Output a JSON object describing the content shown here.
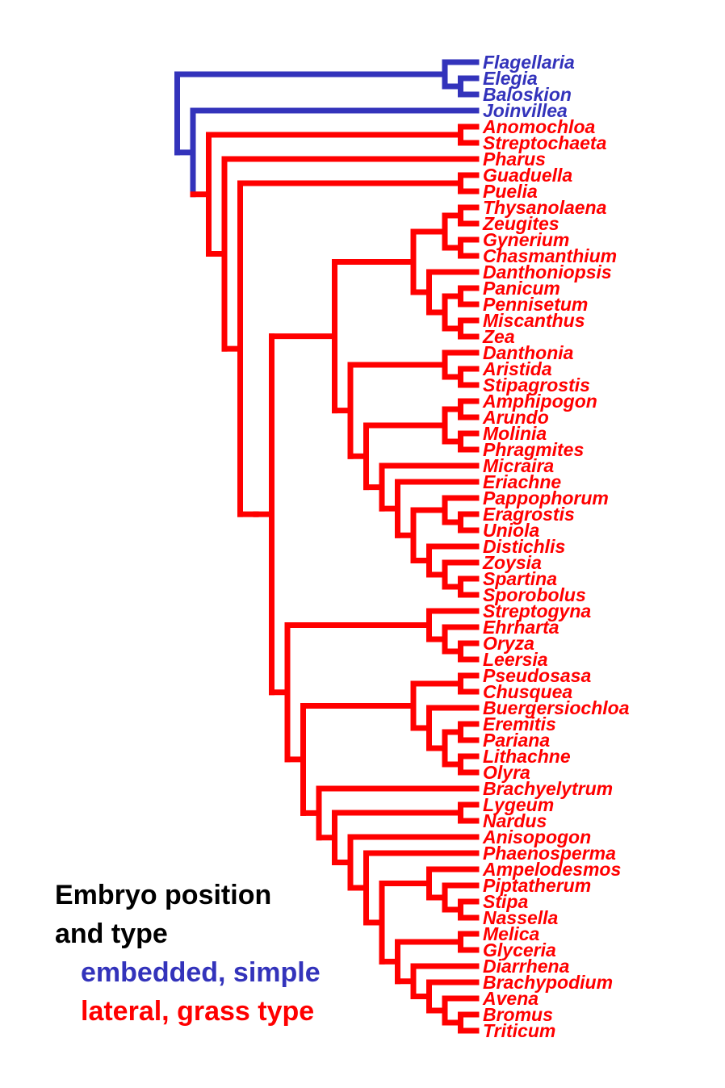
{
  "colors": {
    "embedded": "#3333bb",
    "lateral": "#ff0000",
    "title": "#000000"
  },
  "tree": {
    "newick": "((Flagellaria,(Elegia,Baloskion)),(Joinvillea,((Anomochloa,Streptochaeta),(Pharus,((Guaduella,Puelia),((((((Thysanolaena,Zeugites),(Gynerium,Chasmanthium)),(Danthoniopsis,((Panicum,Pennisetum),(Miscanthus,Zea)))),((Danthonia,(Aristida,Stipagrostis)),(((Amphipogon,Arundo),(Molinia,Phragmites)),(Micraira,(Eriachne,((Pappophorum,(Eragrostis,Uniola)),(Distichlis,(Zoysia,(Spartina,Sporobolus))))))))),((Streptogyna,(Ehrharta,(Oryza,Leersia))),(((Pseudosasa,Chusquea),(Buergersiochloa,((Eremitis,Pariana),(Lithachne,Olyra)))),(Brachyelytrum,((Lygeum,Nardus),(Anisopogon,(Phaenosperma,((Ampelodesmos,(Piptatherum,(Stipa,Nassella))),((Melica,Glyceria),(Diarrhena,(Brachypodium,(Avena,(Bromus,Triticum)))))))))))))))));",
    "taxa": [
      {
        "name": "Flagellaria",
        "type": "embedded"
      },
      {
        "name": "Elegia",
        "type": "embedded"
      },
      {
        "name": "Baloskion",
        "type": "embedded"
      },
      {
        "name": "Joinvillea",
        "type": "embedded"
      },
      {
        "name": "Anomochloa",
        "type": "lateral"
      },
      {
        "name": "Streptochaeta",
        "type": "lateral"
      },
      {
        "name": "Pharus",
        "type": "lateral"
      },
      {
        "name": "Guaduella",
        "type": "lateral"
      },
      {
        "name": "Puelia",
        "type": "lateral"
      },
      {
        "name": "Thysanolaena",
        "type": "lateral"
      },
      {
        "name": "Zeugites",
        "type": "lateral"
      },
      {
        "name": "Gynerium",
        "type": "lateral"
      },
      {
        "name": "Chasmanthium",
        "type": "lateral"
      },
      {
        "name": "Danthoniopsis",
        "type": "lateral"
      },
      {
        "name": "Panicum",
        "type": "lateral"
      },
      {
        "name": "Pennisetum",
        "type": "lateral"
      },
      {
        "name": "Miscanthus",
        "type": "lateral"
      },
      {
        "name": "Zea",
        "type": "lateral"
      },
      {
        "name": "Danthonia",
        "type": "lateral"
      },
      {
        "name": "Aristida",
        "type": "lateral"
      },
      {
        "name": "Stipagrostis",
        "type": "lateral"
      },
      {
        "name": "Amphipogon",
        "type": "lateral"
      },
      {
        "name": "Arundo",
        "type": "lateral"
      },
      {
        "name": "Molinia",
        "type": "lateral"
      },
      {
        "name": "Phragmites",
        "type": "lateral"
      },
      {
        "name": "Micraira",
        "type": "lateral"
      },
      {
        "name": "Eriachne",
        "type": "lateral"
      },
      {
        "name": "Pappophorum",
        "type": "lateral"
      },
      {
        "name": "Eragrostis",
        "type": "lateral"
      },
      {
        "name": "Uniola",
        "type": "lateral"
      },
      {
        "name": "Distichlis",
        "type": "lateral"
      },
      {
        "name": "Zoysia",
        "type": "lateral"
      },
      {
        "name": "Spartina",
        "type": "lateral"
      },
      {
        "name": "Sporobolus",
        "type": "lateral"
      },
      {
        "name": "Streptogyna",
        "type": "lateral"
      },
      {
        "name": "Ehrharta",
        "type": "lateral"
      },
      {
        "name": "Oryza",
        "type": "lateral"
      },
      {
        "name": "Leersia",
        "type": "lateral"
      },
      {
        "name": "Pseudosasa",
        "type": "lateral"
      },
      {
        "name": "Chusquea",
        "type": "lateral"
      },
      {
        "name": "Buergersiochloa",
        "type": "lateral"
      },
      {
        "name": "Eremitis",
        "type": "lateral"
      },
      {
        "name": "Pariana",
        "type": "lateral"
      },
      {
        "name": "Lithachne",
        "type": "lateral"
      },
      {
        "name": "Olyra",
        "type": "lateral"
      },
      {
        "name": "Brachyelytrum",
        "type": "lateral"
      },
      {
        "name": "Lygeum",
        "type": "lateral"
      },
      {
        "name": "Nardus",
        "type": "lateral"
      },
      {
        "name": "Anisopogon",
        "type": "lateral"
      },
      {
        "name": "Phaenosperma",
        "type": "lateral"
      },
      {
        "name": "Ampelodesmos",
        "type": "lateral"
      },
      {
        "name": "Piptatherum",
        "type": "lateral"
      },
      {
        "name": "Stipa",
        "type": "lateral"
      },
      {
        "name": "Nassella",
        "type": "lateral"
      },
      {
        "name": "Melica",
        "type": "lateral"
      },
      {
        "name": "Glyceria",
        "type": "lateral"
      },
      {
        "name": "Diarrhena",
        "type": "lateral"
      },
      {
        "name": "Brachypodium",
        "type": "lateral"
      },
      {
        "name": "Avena",
        "type": "lateral"
      },
      {
        "name": "Bromus",
        "type": "lateral"
      },
      {
        "name": "Triticum",
        "type": "lateral"
      }
    ]
  },
  "legend": {
    "title_line1": "Embryo position",
    "title_line2": "and type",
    "embedded_label": "embedded, simple",
    "lateral_label": "lateral, grass type"
  }
}
